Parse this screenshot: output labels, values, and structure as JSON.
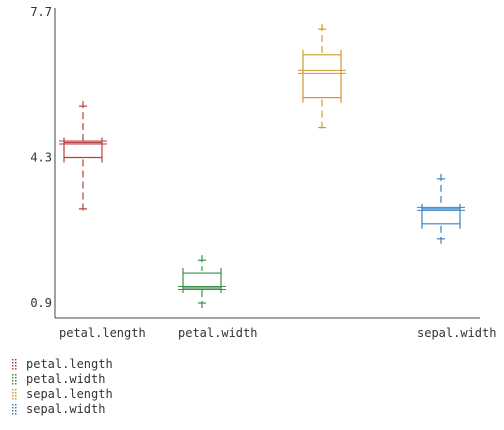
{
  "chart_data": {
    "type": "box",
    "ylim": [
      0.2,
      7.7
    ],
    "yticks": [
      "7.7",
      "4.3",
      "0.9"
    ],
    "categories": [
      "petal.length",
      "petal.width",
      "sepal.length",
      "sepal.width"
    ],
    "series": [
      {
        "name": "petal.length",
        "color": "#b5403f",
        "whisker_low": 3.1,
        "q1": 4.3,
        "median": 4.65,
        "q3": 4.65,
        "whisker_high": 5.5
      },
      {
        "name": "petal.width",
        "color": "#3a8f4a",
        "whisker_low": 0.9,
        "q1": 1.25,
        "median": 1.25,
        "q3": 1.6,
        "whisker_high": 1.9
      },
      {
        "name": "sepal.length",
        "color": "#d19a2c",
        "whisker_low": 5.0,
        "q1": 5.7,
        "median": 6.3,
        "q3": 6.7,
        "whisker_high": 7.3
      },
      {
        "name": "sepal.width",
        "color": "#3a82c4",
        "whisker_low": 2.4,
        "q1": 2.75,
        "median": 3.1,
        "q3": 3.1,
        "whisker_high": 3.8
      }
    ],
    "x_tick_labels": [
      "petal.length",
      "petal.width",
      "",
      "sepal.width"
    ],
    "legend_position": "bottom-left",
    "grid": false
  }
}
